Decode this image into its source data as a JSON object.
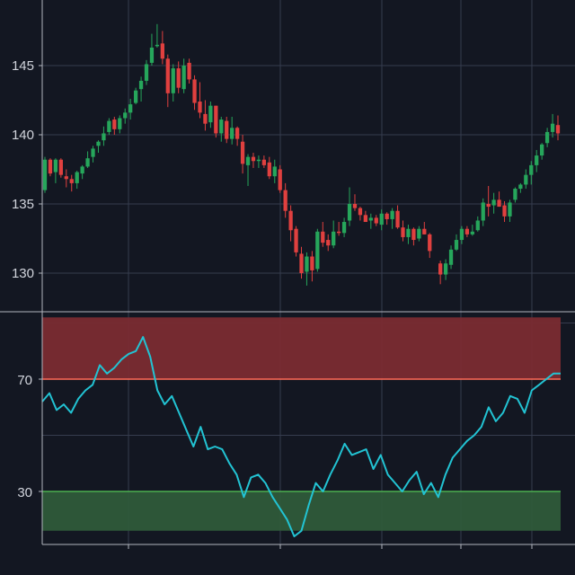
{
  "colors": {
    "background": "#131722",
    "grid": "#363c4e",
    "axis": "#b2b5be",
    "text": "#d1d4dc",
    "up": "#26a65b",
    "down": "#e0403f",
    "rsi_line": "#22c3d3",
    "overbought_fill": "#7a2b32",
    "overbought_line": "#ff6b57",
    "oversold_fill": "#2e5a3a",
    "oversold_line": "#4caf50"
  },
  "chart_data": [
    {
      "type": "candlestick",
      "title": "",
      "xlabel": "",
      "ylabel": "",
      "ylim": [
        128,
        149
      ],
      "y_ticks": [
        "130",
        "135",
        "140",
        "145"
      ],
      "grid": true,
      "ohlc": [
        [
          136.0,
          138.4,
          135.8,
          138.2
        ],
        [
          138.2,
          138.3,
          137.0,
          137.2
        ],
        [
          137.3,
          138.3,
          136.5,
          138.2
        ],
        [
          138.2,
          138.3,
          136.9,
          137.1
        ],
        [
          137.0,
          137.5,
          136.2,
          136.8
        ],
        [
          136.8,
          137.1,
          135.9,
          136.5
        ],
        [
          136.5,
          137.4,
          136.1,
          137.3
        ],
        [
          137.2,
          137.8,
          136.8,
          137.7
        ],
        [
          137.7,
          138.8,
          137.6,
          138.3
        ],
        [
          138.4,
          139.2,
          138.0,
          139.0
        ],
        [
          139.2,
          139.6,
          138.7,
          139.5
        ],
        [
          139.6,
          140.6,
          139.2,
          140.1
        ],
        [
          140.2,
          141.2,
          140.0,
          141.0
        ],
        [
          141.1,
          141.3,
          140.0,
          140.4
        ],
        [
          140.4,
          141.4,
          140.1,
          141.2
        ],
        [
          141.2,
          141.9,
          140.8,
          141.6
        ],
        [
          141.6,
          142.6,
          141.1,
          142.2
        ],
        [
          142.3,
          143.4,
          142.2,
          143.2
        ],
        [
          143.3,
          144.2,
          142.4,
          143.9
        ],
        [
          143.9,
          145.4,
          143.6,
          145.1
        ],
        [
          145.2,
          147.3,
          145.0,
          146.3
        ],
        [
          146.5,
          148.0,
          146.3,
          146.5
        ],
        [
          146.6,
          147.5,
          145.1,
          145.5
        ],
        [
          145.5,
          145.8,
          142.0,
          143.0
        ],
        [
          143.0,
          145.1,
          142.4,
          144.8
        ],
        [
          144.8,
          145.3,
          143.0,
          143.4
        ],
        [
          143.3,
          145.5,
          143.0,
          145.0
        ],
        [
          145.2,
          145.5,
          143.7,
          144.0
        ],
        [
          144.0,
          144.3,
          141.8,
          142.3
        ],
        [
          142.4,
          143.8,
          141.2,
          141.6
        ],
        [
          141.5,
          142.5,
          140.3,
          140.8
        ],
        [
          140.9,
          142.4,
          140.5,
          142.1
        ],
        [
          142.1,
          142.1,
          139.8,
          140.1
        ],
        [
          140.1,
          141.3,
          139.5,
          141.1
        ],
        [
          141.0,
          141.3,
          139.4,
          139.7
        ],
        [
          139.7,
          141.3,
          139.3,
          140.5
        ],
        [
          140.5,
          140.6,
          139.2,
          139.7
        ],
        [
          139.5,
          140.0,
          137.2,
          137.9
        ],
        [
          137.8,
          138.6,
          136.3,
          138.4
        ],
        [
          138.4,
          138.7,
          137.6,
          138.1
        ],
        [
          138.1,
          138.5,
          137.6,
          138.2
        ],
        [
          138.2,
          138.5,
          137.6,
          137.8
        ],
        [
          138.0,
          138.4,
          136.8,
          137.0
        ],
        [
          137.0,
          138.2,
          136.5,
          137.7
        ],
        [
          137.5,
          137.8,
          135.8,
          136.0
        ],
        [
          136.0,
          136.5,
          134.0,
          134.5
        ],
        [
          134.5,
          134.9,
          132.3,
          133.1
        ],
        [
          133.2,
          133.4,
          131.2,
          131.5
        ],
        [
          131.4,
          131.9,
          129.6,
          130.0
        ],
        [
          130.1,
          131.5,
          129.1,
          131.2
        ],
        [
          131.2,
          131.6,
          129.4,
          130.2
        ],
        [
          130.3,
          133.2,
          130.1,
          133.0
        ],
        [
          133.0,
          133.7,
          131.9,
          132.2
        ],
        [
          132.4,
          132.8,
          131.6,
          132.0
        ],
        [
          132.0,
          133.8,
          131.8,
          133.0
        ],
        [
          133.0,
          133.7,
          132.7,
          132.9
        ],
        [
          132.9,
          134.0,
          132.6,
          133.7
        ],
        [
          133.8,
          136.2,
          133.4,
          135.0
        ],
        [
          135.0,
          135.7,
          134.5,
          134.7
        ],
        [
          134.7,
          134.8,
          133.8,
          134.2
        ],
        [
          134.2,
          134.5,
          133.7,
          133.7
        ],
        [
          133.8,
          134.3,
          133.2,
          134.0
        ],
        [
          134.0,
          134.2,
          133.4,
          133.6
        ],
        [
          133.5,
          134.6,
          133.1,
          134.3
        ],
        [
          134.3,
          134.4,
          133.5,
          133.9
        ],
        [
          133.9,
          134.7,
          133.2,
          134.5
        ],
        [
          134.5,
          134.9,
          133.2,
          133.3
        ],
        [
          133.3,
          133.8,
          132.3,
          132.6
        ],
        [
          132.6,
          133.5,
          132.1,
          133.2
        ],
        [
          133.2,
          133.3,
          132.0,
          132.4
        ],
        [
          132.5,
          133.4,
          132.3,
          133.2
        ],
        [
          133.2,
          133.7,
          132.8,
          132.8
        ],
        [
          132.8,
          132.9,
          131.1,
          131.6
        ],
        [
          131.6,
          131.8,
          130.0,
          130.5
        ],
        [
          130.7,
          130.9,
          129.2,
          129.9
        ],
        [
          129.9,
          131.0,
          129.5,
          130.7
        ],
        [
          130.6,
          132.0,
          130.3,
          131.7
        ],
        [
          131.7,
          132.8,
          131.6,
          132.4
        ],
        [
          132.4,
          133.4,
          132.1,
          133.2
        ],
        [
          133.2,
          133.4,
          132.6,
          132.8
        ],
        [
          132.8,
          133.5,
          132.7,
          133.0
        ],
        [
          133.1,
          134.1,
          133.0,
          133.8
        ],
        [
          133.8,
          135.4,
          133.4,
          135.1
        ],
        [
          135.0,
          136.3,
          134.1,
          134.8
        ],
        [
          134.9,
          135.8,
          134.3,
          135.3
        ],
        [
          135.3,
          135.9,
          134.8,
          134.8
        ],
        [
          134.9,
          135.2,
          133.7,
          134.1
        ],
        [
          134.1,
          135.3,
          133.7,
          135.1
        ],
        [
          135.3,
          136.2,
          135.1,
          136.1
        ],
        [
          136.1,
          136.5,
          135.8,
          136.4
        ],
        [
          136.4,
          137.5,
          136.1,
          137.1
        ],
        [
          137.1,
          138.1,
          136.4,
          137.8
        ],
        [
          137.8,
          138.9,
          137.3,
          138.5
        ],
        [
          138.5,
          139.4,
          138.2,
          139.3
        ],
        [
          139.4,
          140.5,
          139.1,
          140.2
        ],
        [
          140.2,
          141.5,
          139.8,
          140.8
        ],
        [
          140.7,
          141.4,
          139.6,
          140.1
        ]
      ],
      "hidden_from": 73,
      "visible_after": 74
    },
    {
      "type": "line",
      "title": "",
      "xlabel": "",
      "ylabel": "",
      "ylim": [
        15,
        93
      ],
      "y_ticks": [
        "30",
        "70"
      ],
      "overbought": 70,
      "oversold": 30,
      "grid": true,
      "values": [
        62,
        65,
        59,
        61,
        58,
        63,
        66,
        68,
        75,
        72,
        74,
        77,
        79,
        80,
        85,
        78,
        66,
        61,
        64,
        58,
        52,
        46,
        53,
        45,
        46,
        45,
        40,
        36,
        28,
        35,
        36,
        33,
        28,
        24,
        20,
        14,
        16,
        25,
        33,
        30,
        36,
        41,
        47,
        43,
        44,
        45,
        38,
        43,
        36,
        33,
        30,
        34,
        37,
        29,
        33,
        28,
        36,
        42,
        45,
        48,
        50,
        53,
        60,
        55,
        58,
        64,
        63,
        58,
        66,
        68,
        70,
        72,
        72
      ]
    }
  ]
}
